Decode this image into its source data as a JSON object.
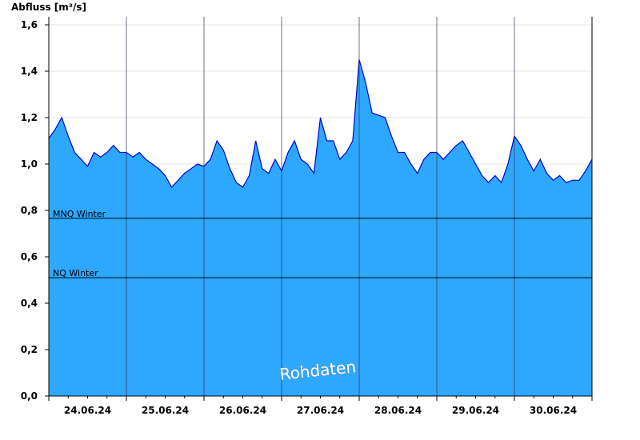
{
  "chart_data": {
    "type": "area",
    "title": "Abfluss [m³/s]",
    "watermark": "Rohdaten",
    "color": "#2ea8ff",
    "line_color": "#0000cc",
    "grid": true,
    "ylim": [
      0,
      1.6
    ],
    "yticks": [
      {
        "value": 0,
        "label": "0,0"
      },
      {
        "value": 0.2,
        "label": "0,2"
      },
      {
        "value": 0.4,
        "label": "0,4"
      },
      {
        "value": 0.6,
        "label": "0,6"
      },
      {
        "value": 0.8,
        "label": "0,8"
      },
      {
        "value": 1.0,
        "label": "1,0"
      },
      {
        "value": 1.2,
        "label": "1,2"
      },
      {
        "value": 1.4,
        "label": "1,4"
      },
      {
        "value": 1.6,
        "label": "1,6"
      }
    ],
    "x_labels": [
      "24.06.24",
      "25.06.24",
      "26.06.24",
      "27.06.24",
      "28.06.24",
      "29.06.24",
      "30.06.24"
    ],
    "values": [
      1.11,
      1.15,
      1.2,
      1.12,
      1.05,
      1.02,
      0.99,
      1.05,
      1.03,
      1.05,
      1.08,
      1.05,
      1.05,
      1.03,
      1.05,
      1.02,
      1.0,
      0.98,
      0.95,
      0.9,
      0.93,
      0.96,
      0.98,
      1.0,
      0.99,
      1.02,
      1.1,
      1.06,
      0.98,
      0.92,
      0.9,
      0.95,
      1.1,
      0.98,
      0.96,
      1.02,
      0.97,
      1.05,
      1.1,
      1.02,
      1.0,
      0.96,
      1.2,
      1.1,
      1.1,
      1.02,
      1.05,
      1.1,
      1.45,
      1.35,
      1.22,
      1.21,
      1.2,
      1.12,
      1.05,
      1.05,
      1.0,
      0.96,
      1.02,
      1.05,
      1.05,
      1.02,
      1.05,
      1.08,
      1.1,
      1.05,
      1.0,
      0.95,
      0.92,
      0.95,
      0.92,
      1.0,
      1.12,
      1.08,
      1.02,
      0.97,
      1.02,
      0.96,
      0.93,
      0.95,
      0.92,
      0.93,
      0.93,
      0.97,
      1.02
    ],
    "annotations": [
      {
        "label": "MNQ Winter",
        "value": 0.766
      },
      {
        "label": "NQ Winter",
        "value": 0.51
      }
    ]
  }
}
